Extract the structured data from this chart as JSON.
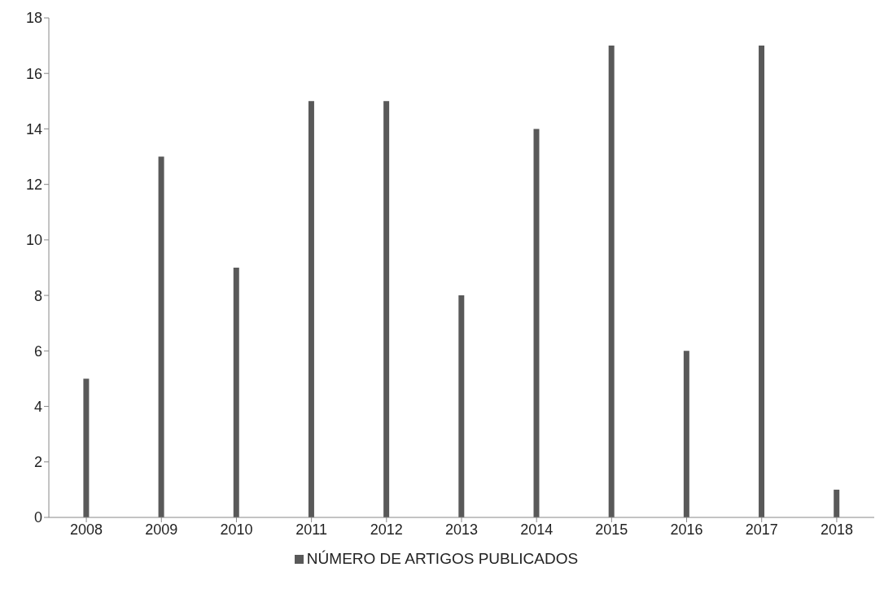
{
  "chart_data": {
    "type": "bar",
    "categories": [
      "2008",
      "2009",
      "2010",
      "2011",
      "2012",
      "2013",
      "2014",
      "2015",
      "2016",
      "2017",
      "2018"
    ],
    "series": [
      {
        "name": "NÚMERO DE ARTIGOS PUBLICADOS",
        "color": "#595959",
        "values": [
          5,
          13,
          9,
          15,
          15,
          8,
          14,
          17,
          6,
          17,
          1
        ]
      }
    ],
    "ylim": [
      0,
      18
    ],
    "yticks": [
      0,
      2,
      4,
      6,
      8,
      10,
      12,
      14,
      16,
      18
    ],
    "grid": false,
    "legend": "bottom"
  }
}
